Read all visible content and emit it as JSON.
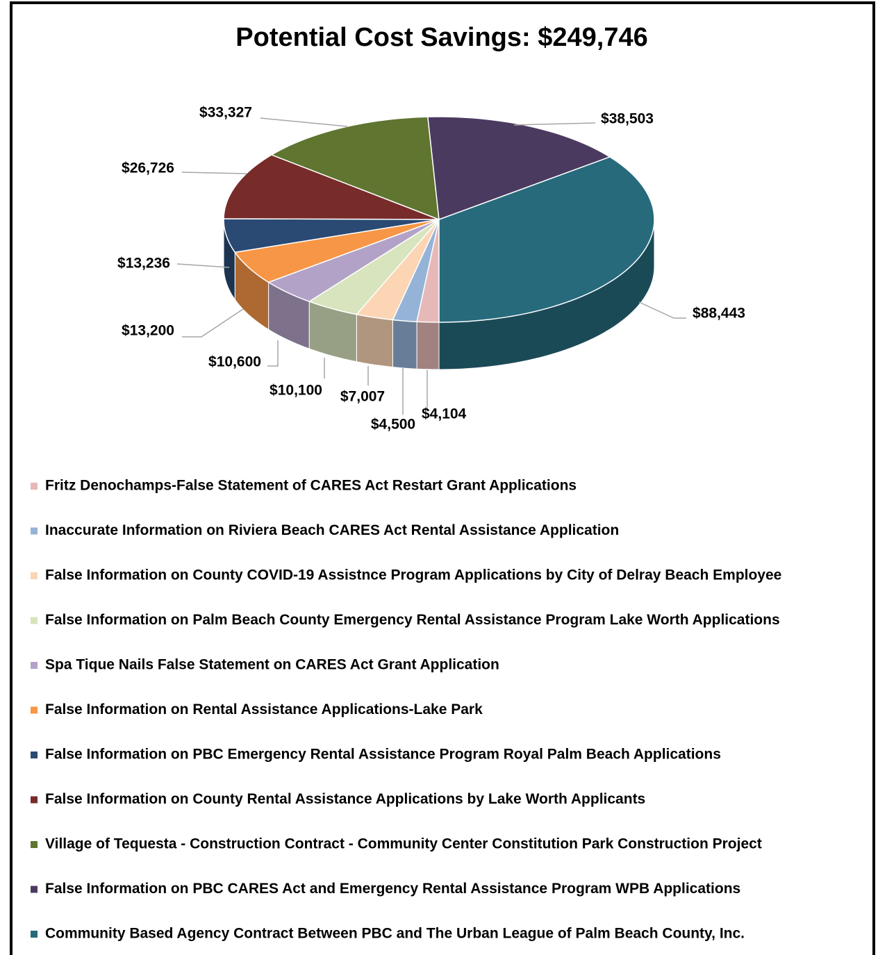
{
  "chart_data": {
    "type": "pie3d",
    "title": "Potential Cost Savings: $249,746",
    "start_angle": 180,
    "categories": [
      "Fritz Denochamps-False Statement of CARES Act Restart Grant Applications",
      "Inaccurate Information on Riviera Beach CARES Act Rental Assistance Application",
      "False Information on County COVID-19 Assistnce Program Applications by City of Delray Beach Employee",
      "False Information on Palm Beach County Emergency Rental Assistance Program Lake Worth Applications",
      "Spa Tique Nails False Statement on CARES Act Grant Application",
      "False Information on Rental Assistance Applications-Lake Park",
      "False Information on PBC Emergency Rental Assistance Program Royal Palm Beach Applications",
      "False Information on County Rental Assistance Applications by Lake Worth Applicants",
      "Village of Tequesta - Construction Contract - Community Center Constitution Park Construction Project",
      "False Information on PBC CARES Act and Emergency Rental Assistance Program WPB Applications",
      "Community Based Agency Contract Between PBC and The Urban League of Palm Beach County, Inc."
    ],
    "values": [
      4104,
      4500,
      7007,
      10100,
      10600,
      13200,
      13236,
      26726,
      33327,
      38503,
      88443
    ],
    "value_labels": [
      "$4,104",
      "$4,500",
      "$7,007",
      "$10,100",
      "$10,600",
      "$13,200",
      "$13,236",
      "$26,726",
      "$33,327",
      "$38,503",
      "$88,443"
    ],
    "colors": [
      "#e6b9b8",
      "#95b3d7",
      "#fcd5b5",
      "#d7e4bd",
      "#b3a2c7",
      "#f79646",
      "#2a4a73",
      "#772c2a",
      "#5f7530",
      "#4b3a60",
      "#276a7c"
    ]
  }
}
